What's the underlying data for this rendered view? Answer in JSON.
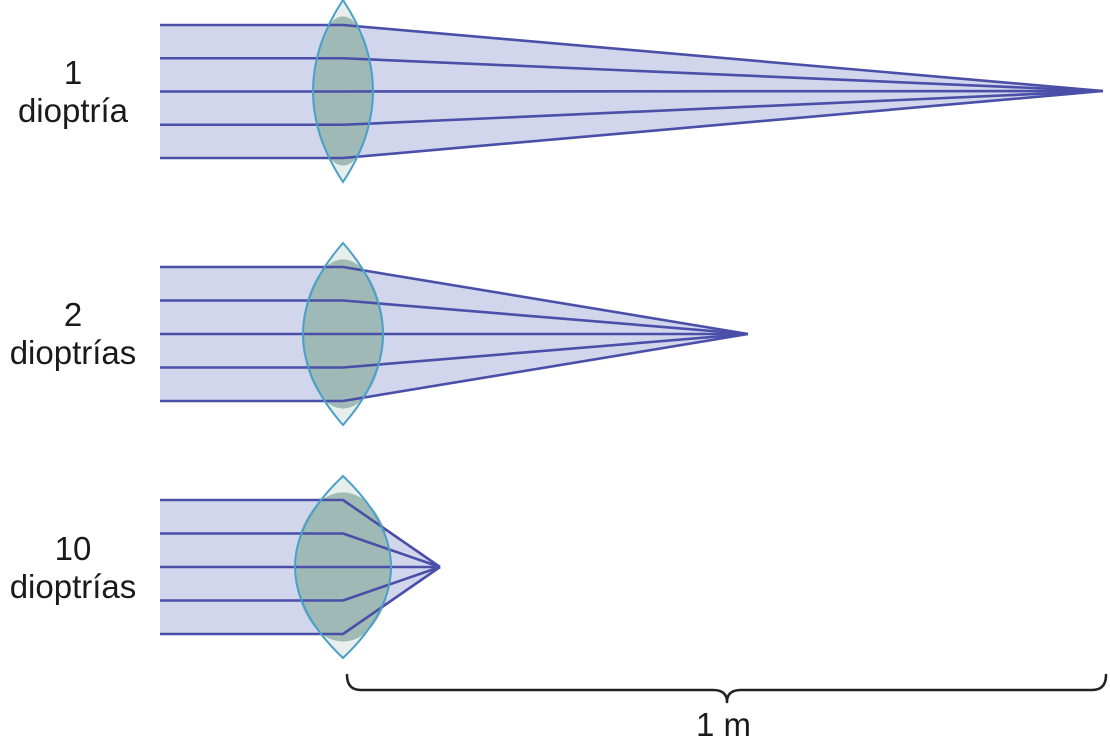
{
  "lenses": [
    {
      "power": "1",
      "unit": "dioptría"
    },
    {
      "power": "2",
      "unit": "dioptrías"
    },
    {
      "power": "10",
      "unit": "dioptrías"
    }
  ],
  "scale": {
    "label": "1 m"
  },
  "colors": {
    "ray": "#4a4fa8",
    "beam_fill": "#d2d6ec",
    "lens_fill": "#e4ece9",
    "lens_core": "#93b1ad",
    "lens_outline": "#4aa0c8",
    "bracket": "#222222",
    "text": "#1a1a1a"
  }
}
